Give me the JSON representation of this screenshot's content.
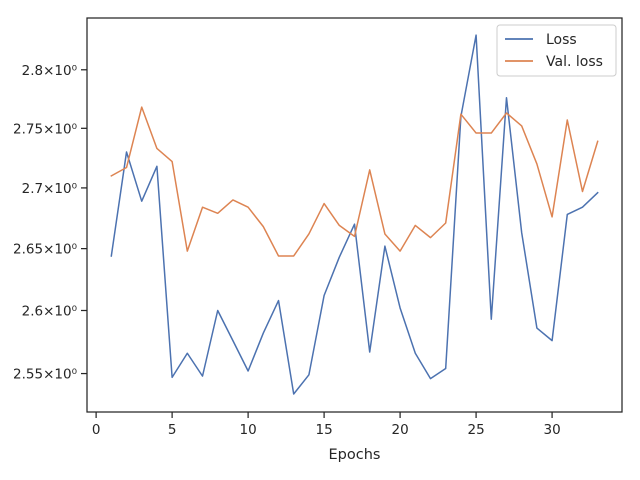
{
  "chart_data": {
    "type": "line",
    "title": "",
    "xlabel": "Epochs",
    "ylabel": "",
    "xlim": [
      -0.6,
      34.6
    ],
    "ylim": [
      2.52,
      2.845
    ],
    "y_scale": "log",
    "x_ticks": [
      0,
      5,
      10,
      15,
      20,
      25,
      30
    ],
    "y_ticks": [
      {
        "value": 2.55,
        "label": "2.55×10⁰"
      },
      {
        "value": 2.6,
        "label": "2.6×10⁰"
      },
      {
        "value": 2.65,
        "label": "2.65×10⁰"
      },
      {
        "value": 2.7,
        "label": "2.7×10⁰"
      },
      {
        "value": 2.75,
        "label": "2.75×10⁰"
      },
      {
        "value": 2.8,
        "label": "2.8×10⁰"
      }
    ],
    "grid": false,
    "legend_position": "top-right",
    "x": [
      1,
      2,
      3,
      4,
      5,
      6,
      7,
      8,
      9,
      10,
      11,
      12,
      13,
      14,
      15,
      16,
      17,
      18,
      19,
      20,
      21,
      22,
      23,
      24,
      25,
      26,
      27,
      28,
      29,
      30,
      31,
      32,
      33
    ],
    "series": [
      {
        "name": "Loss",
        "color": "#4c72b0",
        "values": [
          2.644,
          2.73,
          2.689,
          2.718,
          2.547,
          2.566,
          2.548,
          2.6,
          2.576,
          2.552,
          2.582,
          2.608,
          2.534,
          2.549,
          2.612,
          2.643,
          2.67,
          2.567,
          2.652,
          2.602,
          2.566,
          2.546,
          2.554,
          2.76,
          2.83,
          2.593,
          2.776,
          2.663,
          2.586,
          2.576,
          2.678,
          2.684,
          2.696
        ]
      },
      {
        "name": "Val. loss",
        "color": "#dd8452",
        "values": [
          2.71,
          2.717,
          2.768,
          2.733,
          2.722,
          2.648,
          2.684,
          2.679,
          2.69,
          2.684,
          2.668,
          2.644,
          2.644,
          2.662,
          2.687,
          2.669,
          2.66,
          2.715,
          2.662,
          2.648,
          2.669,
          2.659,
          2.671,
          2.762,
          2.746,
          2.746,
          2.763,
          2.752,
          2.72,
          2.676,
          2.757,
          2.697,
          2.739
        ]
      }
    ]
  }
}
